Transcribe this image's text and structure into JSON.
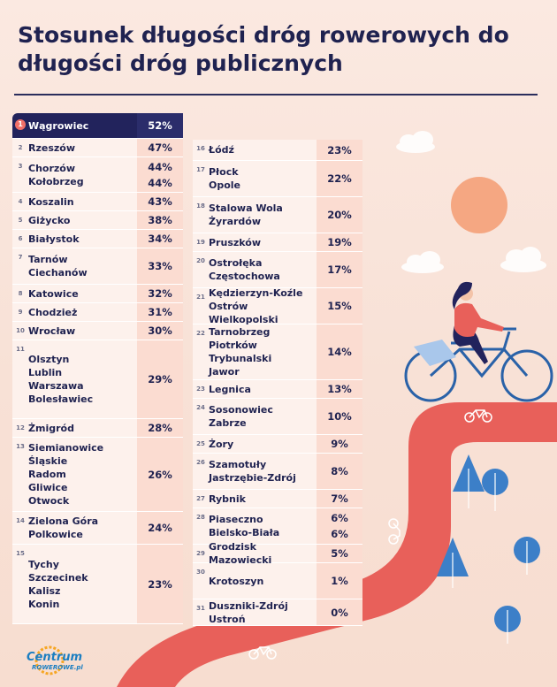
{
  "title": "Stosunek długości dróg rowerowych do długości dróg publicznych",
  "logo": {
    "line1": "Centrum",
    "line2": "ROWEROWE.pl"
  },
  "chart_data": {
    "type": "table",
    "title": "Stosunek długości dróg rowerowych do długości dróg publicznych",
    "rows": [
      {
        "rank": "1",
        "names": [
          "Wągrowiec"
        ],
        "values": [
          "52%"
        ]
      },
      {
        "rank": "2",
        "names": [
          "Rzeszów"
        ],
        "values": [
          "47%"
        ]
      },
      {
        "rank": "3",
        "names": [
          "Chorzów",
          "Kołobrzeg"
        ],
        "values": [
          "44%",
          "44%"
        ]
      },
      {
        "rank": "4",
        "names": [
          "Koszalin"
        ],
        "values": [
          "43%"
        ]
      },
      {
        "rank": "5",
        "names": [
          "Giżycko"
        ],
        "values": [
          "38%"
        ]
      },
      {
        "rank": "6",
        "names": [
          "Białystok"
        ],
        "values": [
          "34%"
        ]
      },
      {
        "rank": "7",
        "names": [
          "Tarnów",
          "Ciechanów"
        ],
        "values": [
          "33%"
        ]
      },
      {
        "rank": "8",
        "names": [
          "Katowice"
        ],
        "values": [
          "32%"
        ]
      },
      {
        "rank": "9",
        "names": [
          "Chodzież"
        ],
        "values": [
          "31%"
        ]
      },
      {
        "rank": "10",
        "names": [
          "Wrocław"
        ],
        "values": [
          "30%"
        ]
      },
      {
        "rank": "11",
        "names": [
          "Olsztyn",
          "Lublin",
          "Warszawa",
          "Bolesławiec"
        ],
        "values": [
          "29%"
        ]
      },
      {
        "rank": "12",
        "names": [
          "Żmigród"
        ],
        "values": [
          "28%"
        ]
      },
      {
        "rank": "13",
        "names": [
          "Siemianowice Śląskie",
          "Radom",
          "Gliwice",
          "Otwock"
        ],
        "values": [
          "26%"
        ]
      },
      {
        "rank": "14",
        "names": [
          "Zielona Góra",
          "Polkowice"
        ],
        "values": [
          "24%"
        ]
      },
      {
        "rank": "15",
        "names": [
          "Tychy",
          "Szczecinek",
          "Kalisz",
          "Konin"
        ],
        "values": [
          "23%"
        ]
      },
      {
        "rank": "16",
        "names": [
          "Łódź"
        ],
        "values": [
          "23%"
        ]
      },
      {
        "rank": "17",
        "names": [
          "Płock",
          "Opole"
        ],
        "values": [
          "22%"
        ]
      },
      {
        "rank": "18",
        "names": [
          "Stalowa Wola",
          "Żyrardów"
        ],
        "values": [
          "20%"
        ]
      },
      {
        "rank": "19",
        "names": [
          "Pruszków"
        ],
        "values": [
          "19%"
        ]
      },
      {
        "rank": "20",
        "names": [
          "Ostrołęka",
          "Częstochowa"
        ],
        "values": [
          "17%"
        ]
      },
      {
        "rank": "21",
        "names": [
          "Kędzierzyn-Koźle",
          "Ostrów Wielkopolski"
        ],
        "values": [
          "15%"
        ]
      },
      {
        "rank": "22",
        "names": [
          "Tarnobrzeg",
          "Piotrków Trybunalski",
          "Jawor"
        ],
        "values": [
          "14%"
        ]
      },
      {
        "rank": "23",
        "names": [
          "Legnica"
        ],
        "values": [
          "13%"
        ]
      },
      {
        "rank": "24",
        "names": [
          "Sosonowiec",
          "Zabrze"
        ],
        "values": [
          "10%"
        ]
      },
      {
        "rank": "25",
        "names": [
          "Żory"
        ],
        "values": [
          "9%"
        ]
      },
      {
        "rank": "26",
        "names": [
          "Szamotuły",
          "Jastrzębie-Zdrój"
        ],
        "values": [
          "8%"
        ]
      },
      {
        "rank": "27",
        "names": [
          "Rybnik"
        ],
        "values": [
          "7%"
        ]
      },
      {
        "rank": "28",
        "names": [
          "Piaseczno",
          "Bielsko-Biała"
        ],
        "values": [
          "6%",
          "6%"
        ]
      },
      {
        "rank": "29",
        "names": [
          "Grodzisk Mazowiecki"
        ],
        "values": [
          "5%"
        ]
      },
      {
        "rank": "30",
        "names": [
          "Krotoszyn"
        ],
        "values": [
          "1%"
        ]
      },
      {
        "rank": "31",
        "names": [
          "Duszniki-Zdrój",
          "Ustroń"
        ],
        "values": [
          "0%"
        ]
      }
    ]
  },
  "colors": {
    "navy": "#22235c",
    "accent_red": "#f16f68",
    "road": "#e8605a",
    "sun": "#f5a782",
    "tree_blue": "#3c7fc8",
    "row_light": "#fdf1ec",
    "value_cell": "#fbdcd1"
  }
}
